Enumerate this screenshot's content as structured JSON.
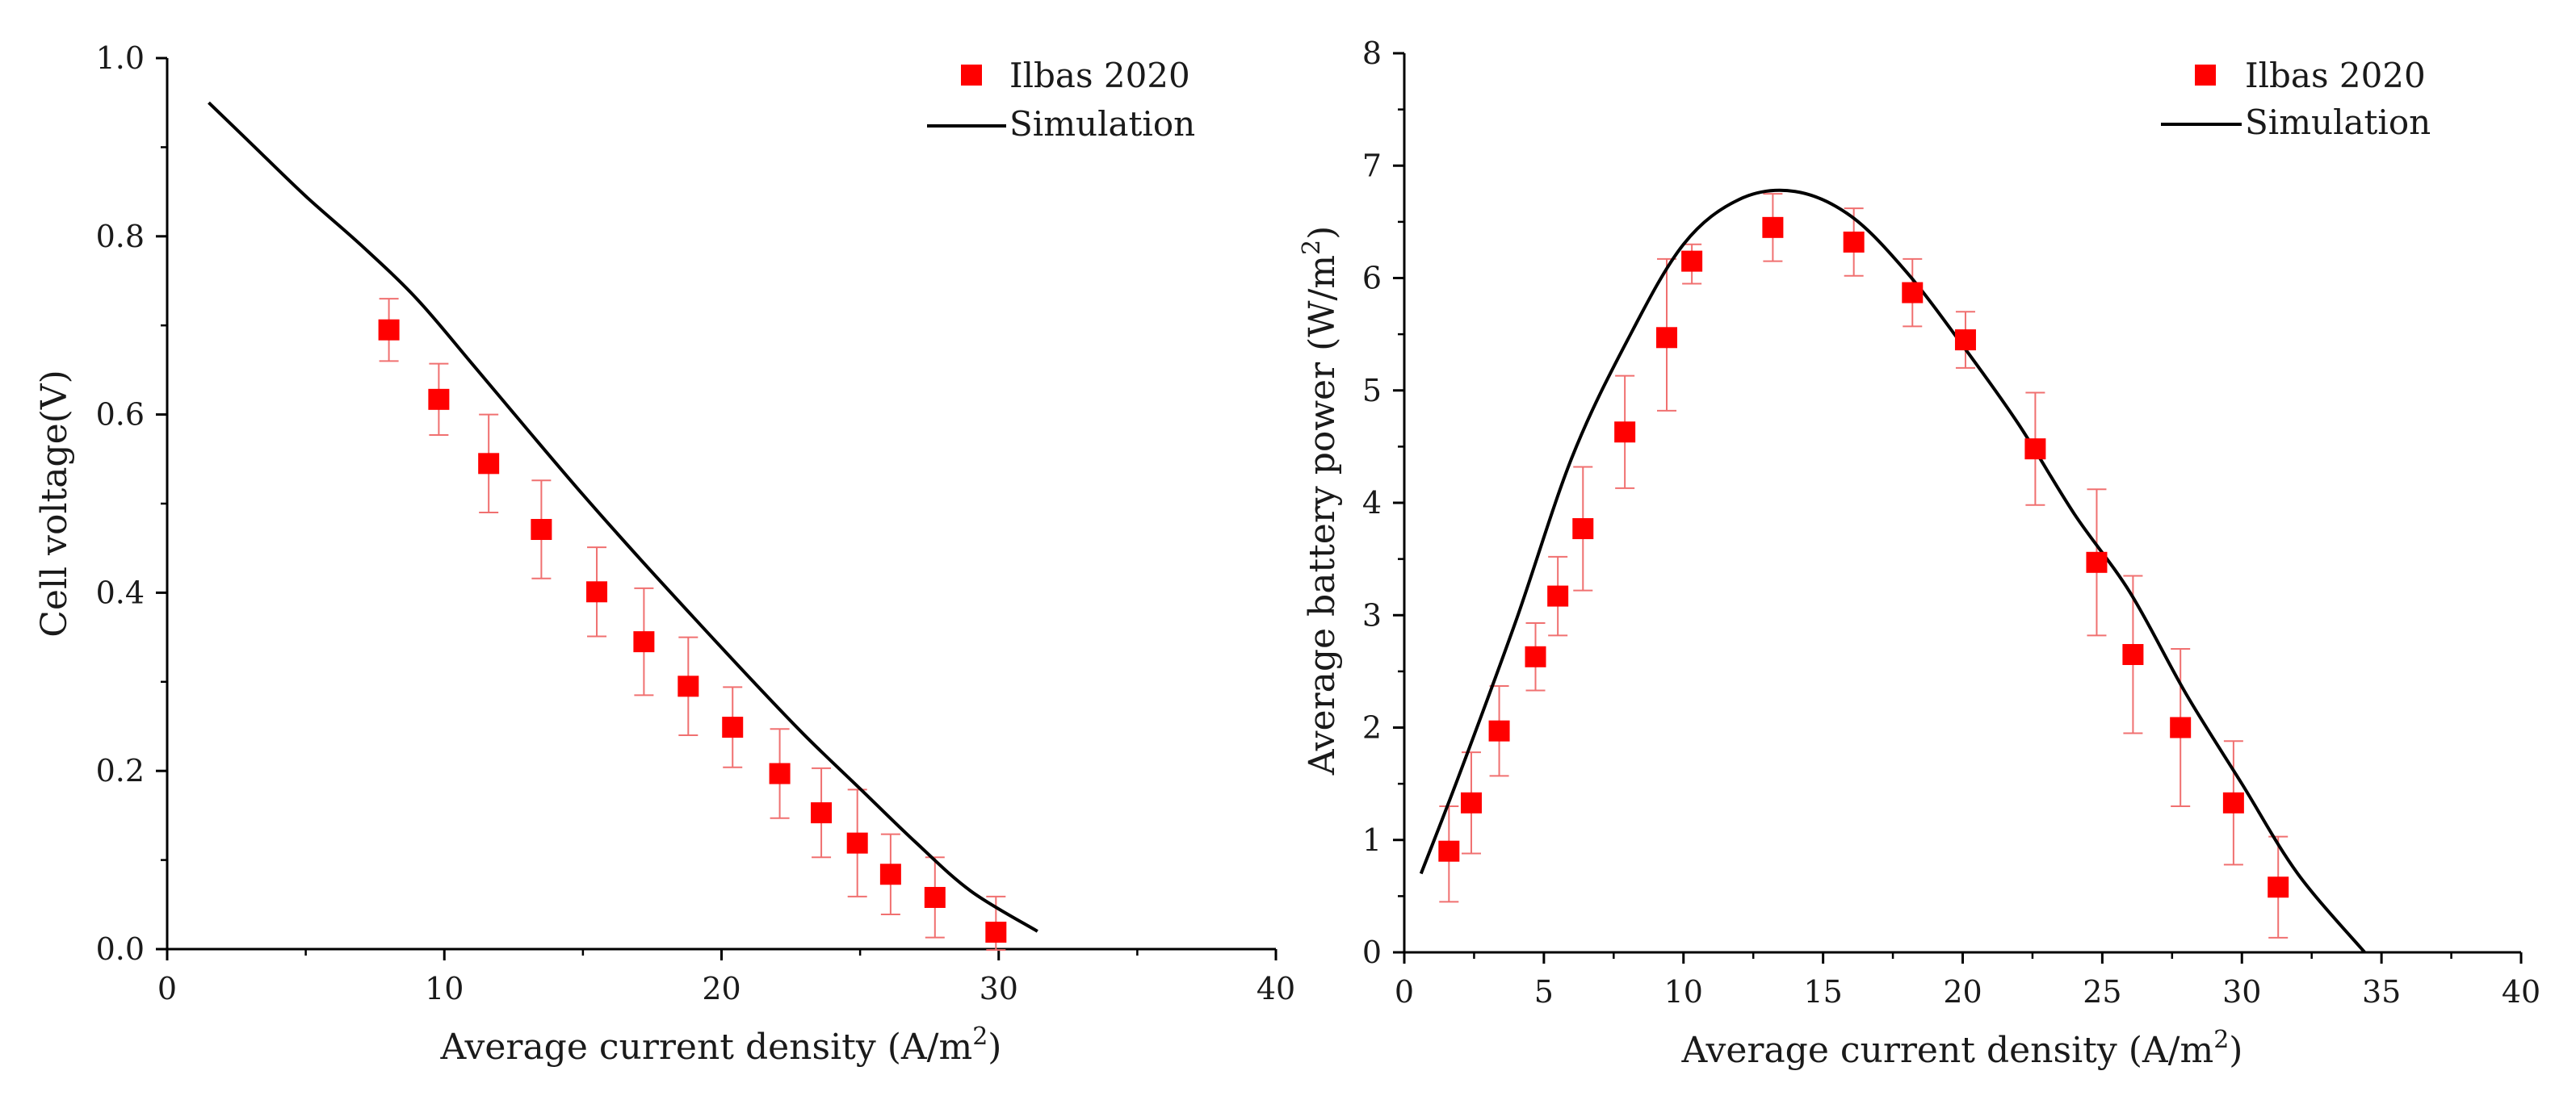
{
  "chart_data": [
    {
      "type": "scatter",
      "xlabel": "Average current density (A/m²)",
      "ylabel": "Cell voltage(V)",
      "xlim": [
        0,
        40
      ],
      "ylim": [
        0,
        1.0
      ],
      "x_ticks": [
        0,
        10,
        20,
        30,
        40
      ],
      "y_ticks": [
        0.0,
        0.2,
        0.4,
        0.6,
        0.8,
        1.0
      ],
      "x_tick_labels": [
        "0",
        "10",
        "20",
        "30",
        "40"
      ],
      "y_tick_labels": [
        "0.0",
        "0.2",
        "0.4",
        "0.6",
        "0.8",
        "1.0"
      ],
      "legend_position": "top-right",
      "series": [
        {
          "name": "Ilbas 2020",
          "kind": "markers-with-error-bars",
          "marker": "square",
          "color": "#ff0000",
          "error_color": "#f07070",
          "x": [
            8.0,
            9.8,
            11.6,
            13.5,
            15.5,
            17.2,
            18.8,
            20.4,
            22.1,
            23.6,
            24.9,
            26.1,
            27.7,
            29.9
          ],
          "y": [
            0.695,
            0.617,
            0.545,
            0.471,
            0.401,
            0.345,
            0.295,
            0.249,
            0.197,
            0.153,
            0.119,
            0.084,
            0.058,
            0.019
          ],
          "yerr_plus": [
            0.035,
            0.04,
            0.055,
            0.055,
            0.05,
            0.06,
            0.055,
            0.045,
            0.05,
            0.05,
            0.06,
            0.045,
            0.045,
            0.04
          ],
          "yerr_minus": [
            0.035,
            0.04,
            0.055,
            0.055,
            0.05,
            0.06,
            0.055,
            0.045,
            0.05,
            0.05,
            0.06,
            0.045,
            0.045,
            0.02
          ]
        },
        {
          "name": "Simulation",
          "kind": "line",
          "color": "#000000",
          "x": [
            1.5,
            3.0,
            5.0,
            7.0,
            9.0,
            11.0,
            13.0,
            15.0,
            17.0,
            19.0,
            21.0,
            23.0,
            25.0,
            27.0,
            29.0,
            31.4
          ],
          "y": [
            0.95,
            0.905,
            0.845,
            0.79,
            0.73,
            0.657,
            0.583,
            0.51,
            0.44,
            0.372,
            0.305,
            0.24,
            0.18,
            0.12,
            0.065,
            0.02
          ]
        }
      ]
    },
    {
      "type": "scatter",
      "xlabel": "Average current density (A/m²)",
      "ylabel": "Average battery power (W/m²)",
      "xlim": [
        0,
        40
      ],
      "ylim": [
        0,
        8
      ],
      "x_ticks": [
        0,
        5,
        10,
        15,
        20,
        25,
        30,
        35,
        40
      ],
      "y_ticks": [
        0,
        1,
        2,
        3,
        4,
        5,
        6,
        7,
        8
      ],
      "x_tick_labels": [
        "0",
        "5",
        "10",
        "15",
        "20",
        "25",
        "30",
        "35",
        "40"
      ],
      "y_tick_labels": [
        "0",
        "1",
        "2",
        "3",
        "4",
        "5",
        "6",
        "7",
        "8"
      ],
      "legend_position": "top-right",
      "series": [
        {
          "name": "Ilbas 2020",
          "kind": "markers-with-error-bars",
          "marker": "square",
          "color": "#ff0000",
          "error_color": "#f07070",
          "x": [
            1.6,
            2.4,
            3.4,
            4.7,
            5.5,
            6.4,
            7.9,
            9.4,
            10.3,
            13.2,
            16.1,
            18.2,
            20.1,
            22.6,
            24.8,
            26.1,
            27.8,
            29.7,
            31.3
          ],
          "y": [
            0.9,
            1.33,
            1.97,
            2.63,
            3.17,
            3.77,
            4.63,
            5.47,
            6.15,
            6.45,
            6.32,
            5.87,
            5.45,
            4.48,
            3.47,
            2.65,
            2.0,
            1.33,
            0.58
          ],
          "yerr_plus": [
            0.4,
            0.45,
            0.4,
            0.3,
            0.35,
            0.55,
            0.5,
            0.7,
            0.15,
            0.3,
            0.3,
            0.3,
            0.25,
            0.5,
            0.65,
            0.7,
            0.7,
            0.55,
            0.45
          ],
          "yerr_minus": [
            0.45,
            0.45,
            0.4,
            0.3,
            0.35,
            0.55,
            0.5,
            0.65,
            0.2,
            0.3,
            0.3,
            0.3,
            0.25,
            0.5,
            0.65,
            0.7,
            0.7,
            0.55,
            0.45
          ]
        },
        {
          "name": "Simulation",
          "kind": "line",
          "color": "#000000",
          "x": [
            0.6,
            2.0,
            4.0,
            6.0,
            8.0,
            10.0,
            12.0,
            14.0,
            16.0,
            18.0,
            20.0,
            22.0,
            24.0,
            26.0,
            28.0,
            30.0,
            32.0,
            34.4
          ],
          "y": [
            0.7,
            1.6,
            2.95,
            4.4,
            5.45,
            6.3,
            6.7,
            6.77,
            6.55,
            6.05,
            5.4,
            4.7,
            3.9,
            3.2,
            2.3,
            1.5,
            0.7,
            0.0
          ]
        }
      ]
    }
  ]
}
